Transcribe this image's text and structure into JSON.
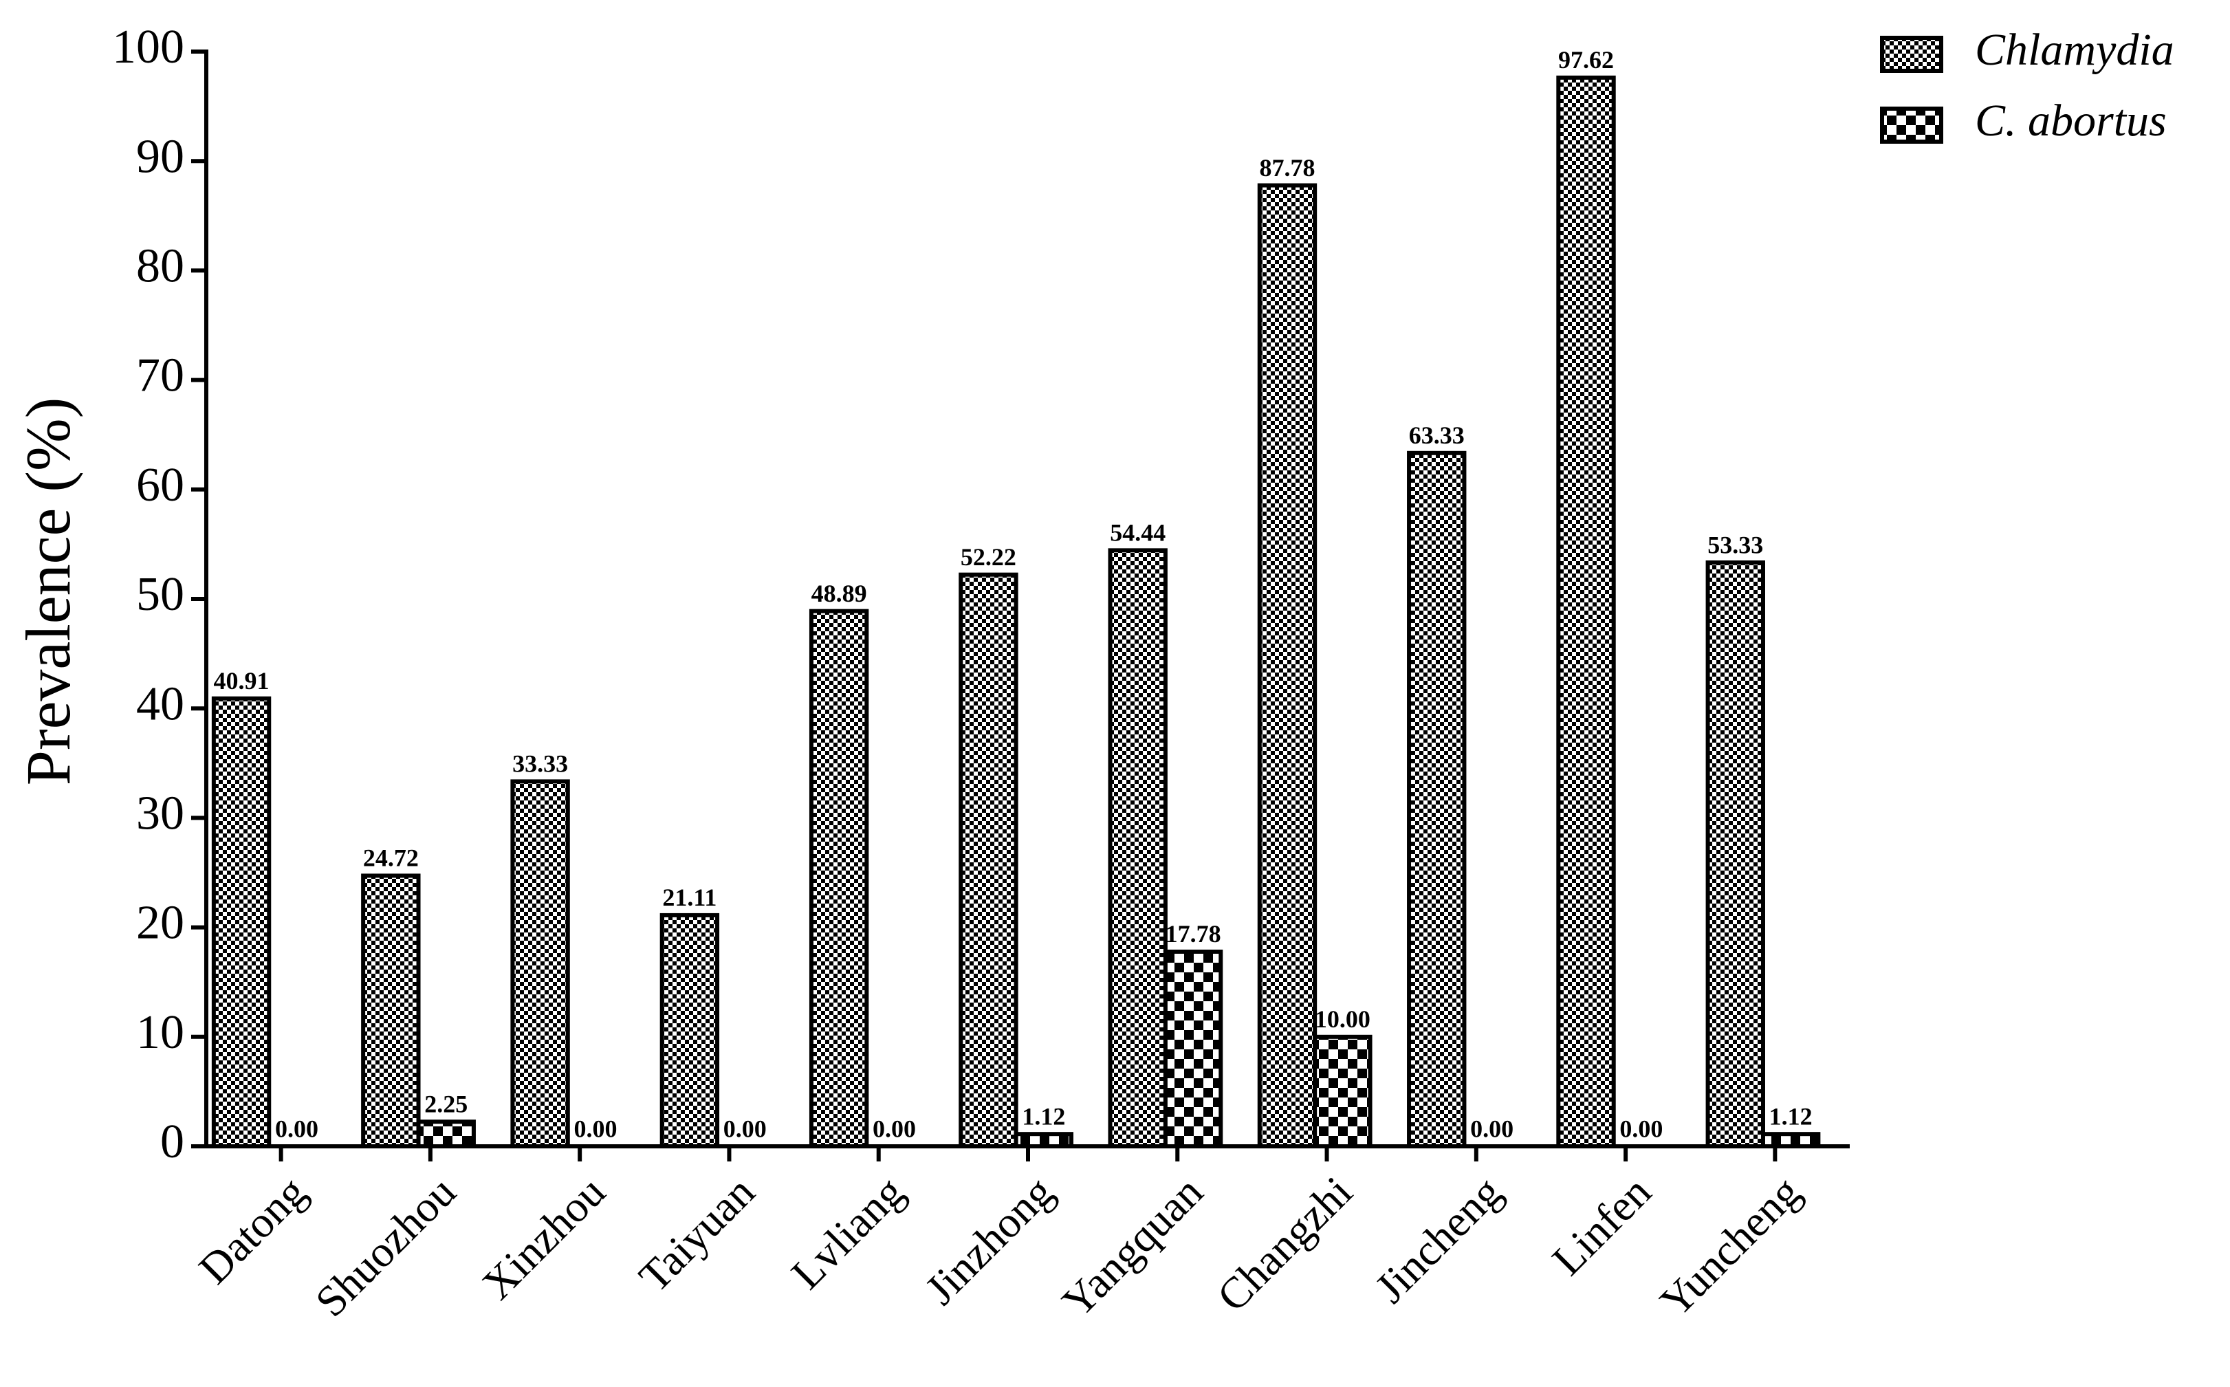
{
  "chart_data": {
    "type": "bar",
    "y_label": "Prevalence (%)",
    "categories": [
      "Datong",
      "Shuozhou",
      "Xinzhou",
      "Taiyuan",
      "Lvliang",
      "Jinzhong",
      "Yangquan",
      "Changzhi",
      "Jincheng",
      "Linfen",
      "Yuncheng"
    ],
    "series": [
      {
        "name": "Chlamydia",
        "color": "#000000",
        "pattern": "fine",
        "values": [
          40.91,
          24.72,
          33.33,
          21.11,
          48.89,
          52.22,
          54.44,
          87.78,
          63.33,
          97.62,
          53.33
        ],
        "value_labels": [
          "40.91",
          "24.72",
          "33.33",
          "21.11",
          "48.89",
          "52.22",
          "54.44",
          "87.78",
          "63.33",
          "97.62",
          "53.33"
        ]
      },
      {
        "name": "C. abortus",
        "color": "#000000",
        "pattern": "coarse",
        "values": [
          0,
          2.25,
          0,
          0,
          0,
          1.12,
          17.78,
          10,
          0,
          0,
          1.12
        ],
        "value_labels": [
          "0.00",
          "2.25",
          "0.00",
          "0.00",
          "0.00",
          "1.12",
          "17.78",
          "10.00",
          "0.00",
          "0.00",
          "1.12"
        ]
      }
    ],
    "ylim": [
      0,
      100
    ],
    "yticks": [
      0,
      10,
      20,
      30,
      40,
      50,
      60,
      70,
      80,
      90,
      100
    ],
    "grid": false,
    "legend": "top-right"
  }
}
